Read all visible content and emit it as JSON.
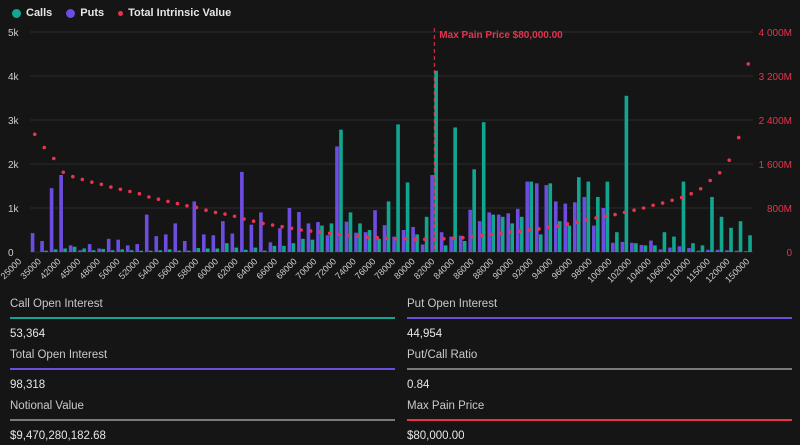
{
  "colors": {
    "calls": "#12a58f",
    "puts": "#6d4de0",
    "intrinsic": "#e8334d",
    "maxpain": "#e8334d",
    "neutral": "#7a7a7a",
    "background": "#151515",
    "text": "#e6e6e6"
  },
  "legend": {
    "calls": "Calls",
    "puts": "Puts",
    "intrinsic": "Total Intrinsic Value"
  },
  "chart_data": {
    "type": "bar",
    "annotation": "Max Pain Price $80,000.00",
    "max_pain_category": "80000",
    "left_axis": {
      "ticks": [
        "0",
        "1k",
        "2k",
        "3k",
        "4k",
        "5k"
      ],
      "range": [
        0,
        5000
      ]
    },
    "right_axis": {
      "ticks": [
        "0",
        "800M",
        "1 600M",
        "2 400M",
        "3 200M",
        "4 000M"
      ],
      "range": [
        0,
        4000000000
      ]
    },
    "x_tick_labels": [
      "25000",
      "35000",
      "42000",
      "45000",
      "48000",
      "50000",
      "52000",
      "54000",
      "56000",
      "58000",
      "60000",
      "62000",
      "64000",
      "66000",
      "68000",
      "70000",
      "72000",
      "74000",
      "76000",
      "78000",
      "80000",
      "82000",
      "84000",
      "86000",
      "88000",
      "90000",
      "92000",
      "94000",
      "96000",
      "98000",
      "100000",
      "102000",
      "104000",
      "106000",
      "110000",
      "115000",
      "120000",
      "150000"
    ],
    "categories": [
      "25000",
      "30000",
      "35000",
      "40000",
      "42000",
      "43000",
      "44000",
      "45000",
      "46000",
      "47000",
      "48000",
      "49000",
      "50000",
      "51000",
      "52000",
      "53000",
      "54000",
      "55000",
      "56000",
      "57000",
      "58000",
      "59000",
      "60000",
      "61000",
      "62000",
      "63000",
      "64000",
      "65000",
      "66000",
      "67000",
      "68000",
      "69000",
      "70000",
      "71000",
      "72000",
      "73000",
      "74000",
      "75000",
      "76000",
      "77000",
      "78000",
      "79000",
      "80000",
      "81000",
      "82000",
      "83000",
      "84000",
      "85000",
      "86000",
      "87000",
      "88000",
      "89000",
      "90000",
      "91000",
      "92000",
      "93000",
      "94000",
      "95000",
      "96000",
      "97000",
      "98000",
      "99000",
      "100000",
      "101000",
      "102000",
      "103000",
      "104000",
      "105000",
      "106000",
      "108000",
      "110000",
      "112000",
      "115000",
      "120000",
      "130000",
      "150000"
    ],
    "series": [
      {
        "name": "Calls",
        "values": [
          0,
          30,
          60,
          80,
          120,
          80,
          40,
          70,
          40,
          60,
          40,
          30,
          30,
          40,
          60,
          30,
          30,
          90,
          80,
          80,
          200,
          100,
          50,
          100,
          30,
          140,
          140,
          200,
          300,
          280,
          600,
          650,
          2780,
          900,
          650,
          500,
          300,
          1150,
          2900,
          1580,
          400,
          800,
          4120,
          150,
          2830,
          250,
          1880,
          2950,
          850,
          800,
          650,
          800,
          1600,
          400,
          1560,
          700,
          600,
          1700,
          1600,
          1250,
          1600,
          450,
          3550,
          200,
          150,
          150,
          450,
          350,
          1600,
          200,
          150,
          1250,
          800,
          550,
          700,
          380
        ],
        "unit": "contracts"
      },
      {
        "name": "Puts",
        "values": [
          430,
          250,
          1450,
          1750,
          150,
          40,
          180,
          80,
          300,
          280,
          150,
          180,
          850,
          360,
          400,
          650,
          250,
          1150,
          400,
          380,
          700,
          420,
          1820,
          620,
          900,
          220,
          540,
          1000,
          910,
          650,
          680,
          380,
          2400,
          690,
          440,
          450,
          950,
          610,
          350,
          500,
          570,
          170,
          1750,
          450,
          350,
          370,
          960,
          700,
          900,
          850,
          880,
          980,
          1600,
          1560,
          1520,
          1150,
          1100,
          1130,
          1250,
          600,
          1000,
          210,
          230,
          210,
          160,
          260,
          60,
          100,
          130,
          90,
          30,
          50,
          50,
          40,
          30,
          20
        ],
        "unit": "contracts"
      },
      {
        "name": "Total Intrinsic Value",
        "values": [
          2140000000,
          1900000000,
          1700000000,
          1450000000,
          1370000000,
          1320000000,
          1270000000,
          1230000000,
          1180000000,
          1140000000,
          1100000000,
          1060000000,
          1000000000,
          960000000,
          920000000,
          880000000,
          840000000,
          810000000,
          760000000,
          720000000,
          690000000,
          650000000,
          600000000,
          560000000,
          520000000,
          490000000,
          460000000,
          430000000,
          400000000,
          380000000,
          360000000,
          340000000,
          320000000,
          300000000,
          290000000,
          270000000,
          260000000,
          250000000,
          240000000,
          240000000,
          230000000,
          230000000,
          230000000,
          240000000,
          250000000,
          260000000,
          280000000,
          300000000,
          320000000,
          340000000,
          360000000,
          380000000,
          400000000,
          420000000,
          450000000,
          470000000,
          510000000,
          540000000,
          580000000,
          620000000,
          650000000,
          680000000,
          720000000,
          760000000,
          800000000,
          850000000,
          890000000,
          940000000,
          990000000,
          1060000000,
          1150000000,
          1300000000,
          1440000000,
          1670000000,
          2080000000,
          3420000000
        ],
        "unit": "USD"
      }
    ]
  },
  "stats": {
    "call_oi": {
      "label": "Call Open Interest",
      "value": "53,364"
    },
    "put_oi": {
      "label": "Put Open Interest",
      "value": "44,954"
    },
    "total_oi": {
      "label": "Total Open Interest",
      "value": "98,318"
    },
    "pc_ratio": {
      "label": "Put/Call Ratio",
      "value": "0.84"
    },
    "notional": {
      "label": "Notional Value",
      "value": "$9,470,280,182.68"
    },
    "max_pain": {
      "label": "Max Pain Price",
      "value": "$80,000.00"
    }
  }
}
